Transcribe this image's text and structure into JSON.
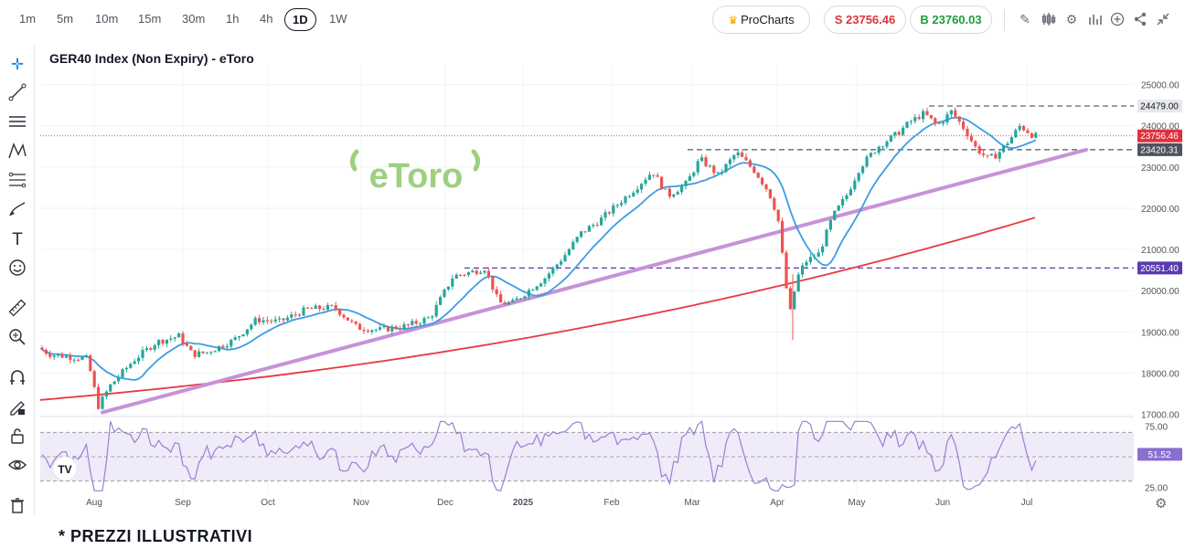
{
  "toolbar": {
    "timeframes": [
      "1m",
      "5m",
      "10m",
      "15m",
      "30m",
      "1h",
      "4h",
      "1D",
      "1W"
    ],
    "active_timeframe": "1D",
    "prochart_label": "ProCharts",
    "sell_label": "S 23756.46",
    "buy_label": "B 23760.03",
    "icons": [
      "pencil-icon",
      "candles-icon",
      "gear-icon",
      "indicators-icon",
      "plus-circle-icon",
      "share-icon",
      "collapse-icon"
    ]
  },
  "left_tools": [
    "crosshair-icon",
    "trendline-icon",
    "horizontal-lines-icon",
    "pattern-icon",
    "fib-icon",
    "brush-icon",
    "text-icon",
    "emoji-icon",
    "ruler-icon",
    "zoom-icon",
    "magnet-icon",
    "lock-draw-icon",
    "lock-icon",
    "eye-icon",
    "trash-icon"
  ],
  "chart_data": {
    "type": "candlestick",
    "title": "GER40 Index (Non Expiry) - eToro",
    "watermark": "eToro",
    "x_ticks": [
      "Aug",
      "Sep",
      "Oct",
      "Nov",
      "Dec",
      "2025",
      "Feb",
      "Mar",
      "Apr",
      "May",
      "Jun",
      "Jul"
    ],
    "y_ticks": [
      "25000.00",
      "24000.00",
      "23000.00",
      "22000.00",
      "21000.00",
      "20000.00",
      "19000.00",
      "18000.00",
      "17000.00"
    ],
    "ylim": [
      16970,
      25500
    ],
    "price_labels": {
      "high_line": "24479.00",
      "current": "23756.46",
      "support": "23420.31",
      "low_line": "20551.40"
    },
    "key_levels": {
      "high_line": 24479,
      "current": 23756.46,
      "support": 23420.31,
      "low_line": 20551.4
    },
    "rsi": {
      "y_ticks": [
        "75.00",
        "25.00"
      ],
      "current_label": "51.52",
      "levels": [
        70,
        50,
        30
      ],
      "ylim": [
        20,
        80
      ]
    },
    "colors": {
      "up": "#26a69a",
      "down": "#ef5350",
      "ma_fast": "#3c9ce4",
      "ma_slow": "#e8393f",
      "trendline": "#c792d8",
      "rsi": "#9b7fd0",
      "low_line": "#5a3bb0",
      "current": "#e0323c"
    }
  },
  "footer_note": "* PREZZI ILLUSTRATIVI"
}
